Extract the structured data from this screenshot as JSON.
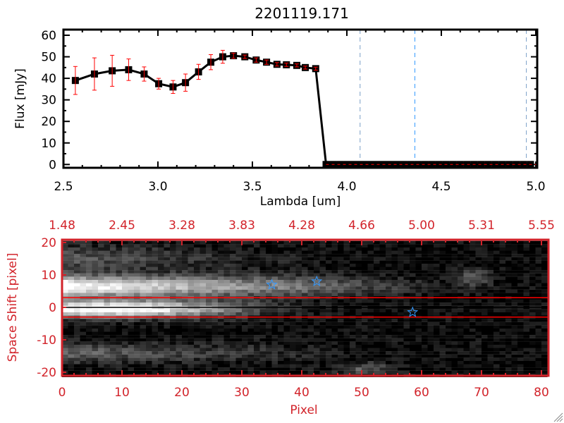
{
  "chart_data": [
    {
      "type": "line",
      "title": "2201119.171",
      "xlabel": "Lambda [um]",
      "ylabel": "Flux [mJy]",
      "xlim": [
        2.5,
        5.0
      ],
      "ylim": [
        0,
        60
      ],
      "xticks": [
        "2.5",
        "3.0",
        "3.5",
        "4.0",
        "4.5",
        "5.0"
      ],
      "yticks": [
        "0",
        "10",
        "20",
        "30",
        "40",
        "50",
        "60"
      ],
      "series": [
        {
          "x": [
            2.563,
            2.664,
            2.758,
            2.845,
            2.927,
            3.004,
            3.08,
            3.146,
            3.215,
            3.28,
            3.343,
            3.4,
            3.46,
            3.52,
            3.575,
            3.63,
            3.68,
            3.735,
            3.78,
            3.835
          ],
          "y": [
            39,
            42,
            43.5,
            44,
            42,
            37.5,
            36,
            38,
            43,
            47.5,
            50,
            50.5,
            50,
            48.5,
            47.5,
            46.5,
            46.3,
            46,
            45,
            44.5
          ],
          "yerr": [
            6.5,
            7.5,
            7.2,
            5,
            3.3,
            2.5,
            3,
            4,
            3.5,
            3.5,
            3,
            1.2,
            0.8,
            1,
            1,
            0.8,
            0.8,
            0.7,
            0.7,
            0.7
          ],
          "color": "#000000",
          "errcolor": "#ff0000"
        }
      ],
      "zero_points_from": 3.89,
      "zero_points_to": 4.98,
      "vlines": [
        {
          "x": 4.07,
          "color": "#7a9ec8",
          "style": "dashed"
        },
        {
          "x": 4.36,
          "color": "#3399ff",
          "style": "dashed"
        },
        {
          "x": 4.95,
          "color": "#7a9ec8",
          "style": "dashed"
        }
      ],
      "hline": {
        "y": 0,
        "color": "#ff0000",
        "style": "dashed"
      }
    },
    {
      "type": "heatmap",
      "xlabel": "Pixel",
      "ylabel": "Space Shift [pixel]",
      "xlim": [
        0,
        81
      ],
      "ylim": [
        -21,
        21
      ],
      "xticks": [
        "0",
        "10",
        "20",
        "30",
        "40",
        "50",
        "60",
        "70",
        "80"
      ],
      "yticks": [
        "-20",
        "-10",
        "0",
        "10",
        "20"
      ],
      "top_xticks": [
        "1.48",
        "2.45",
        "3.28",
        "3.83",
        "4.28",
        "4.66",
        "5.00",
        "5.31",
        "5.55"
      ],
      "colormap": "grayscale",
      "axis_color": "#d2232a",
      "hlines": [
        {
          "y": 3,
          "color": "#ff0000"
        },
        {
          "y": 0,
          "color": "#000000"
        },
        {
          "y": -3,
          "color": "#ff0000"
        }
      ],
      "stars": [
        {
          "x": 35,
          "y": 7
        },
        {
          "x": 42.5,
          "y": 8
        },
        {
          "x": 58.5,
          "y": -1.5
        }
      ],
      "star_color": "#3399ff"
    }
  ]
}
